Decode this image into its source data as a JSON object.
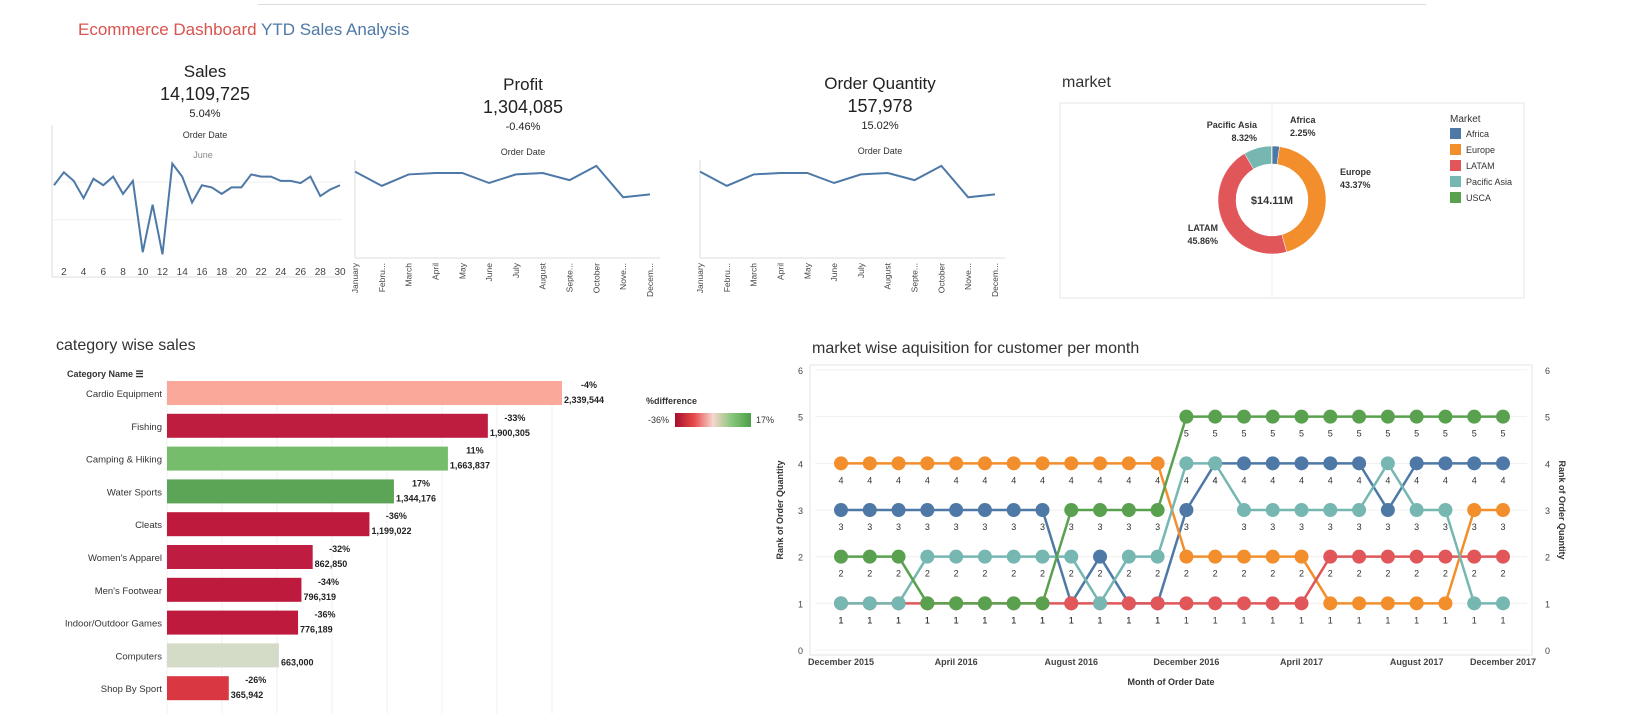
{
  "header": {
    "title_part1": "Ecommerce Dashboard",
    "title_part2": "YTD Sales Analysis"
  },
  "kpis": {
    "sales": {
      "label": "Sales",
      "value": "14,109,725",
      "change": "5.04%",
      "axis_title": "Order Date",
      "sub_label": "June"
    },
    "profit": {
      "label": "Profit",
      "value": "1,304,085",
      "change": "-0.46%",
      "axis_title": "Order Date"
    },
    "quantity": {
      "label": "Order Quantity",
      "value": "157,978",
      "change": "15.02%",
      "axis_title": "Order Date"
    }
  },
  "market": {
    "title": "market",
    "center_label": "$14.11M",
    "legend_title": "Market",
    "segments": [
      {
        "name": "Africa",
        "pct": 2.25,
        "label": "2.25%",
        "color": "#4e79a7"
      },
      {
        "name": "Europe",
        "pct": 43.37,
        "label": "43.37%",
        "color": "#f28e2b"
      },
      {
        "name": "LATAM",
        "pct": 45.86,
        "label": "45.86%",
        "color": "#e15759"
      },
      {
        "name": "Pacific Asia",
        "pct": 8.32,
        "label": "8.32%",
        "color": "#76b7b2"
      },
      {
        "name": "USCA",
        "pct": 0.2,
        "label": "",
        "color": "#59a14f"
      }
    ]
  },
  "category": {
    "title": "category wise sales",
    "header": "Category Name",
    "legend_title": "%difference",
    "legend_min": "-36%",
    "legend_max": "17%"
  },
  "acquisition": {
    "title": "market wise aquisition for customer per month",
    "y_title": "Rank of Order Quantity",
    "x_title": "Month of Order Date"
  },
  "chart_data": [
    {
      "type": "line",
      "title": "Sales",
      "xlabel": "Order Date",
      "x_label_top": "June",
      "x": [
        1,
        2,
        3,
        4,
        5,
        6,
        7,
        8,
        9,
        10,
        11,
        12,
        13,
        14,
        15,
        16,
        17,
        18,
        19,
        20,
        21,
        22,
        23,
        24,
        25,
        26,
        27,
        28,
        29,
        30
      ],
      "x_ticks": [
        "2",
        "4",
        "6",
        "8",
        "10",
        "12",
        "14",
        "16",
        "18",
        "20",
        "22",
        "24",
        "26",
        "28",
        "30"
      ],
      "values": [
        46,
        52,
        48,
        40,
        49,
        46,
        50,
        42,
        48,
        15,
        37,
        14,
        56,
        50,
        38,
        46,
        45,
        42,
        45,
        45,
        51,
        50,
        50,
        48,
        48,
        47,
        50,
        41,
        44,
        46
      ]
    },
    {
      "type": "line",
      "title": "Profit",
      "xlabel": "Order Date",
      "categories": [
        "January",
        "Febru...",
        "March",
        "April",
        "May",
        "June",
        "July",
        "August",
        "Septe...",
        "October",
        "Nove...",
        "Decem..."
      ],
      "values": [
        49,
        44,
        48,
        48.5,
        48.5,
        45,
        48,
        48.5,
        46,
        51,
        40,
        41
      ]
    },
    {
      "type": "line",
      "title": "Order Quantity",
      "xlabel": "Order Date",
      "categories": [
        "January",
        "Febru...",
        "March",
        "April",
        "May",
        "June",
        "July",
        "August",
        "Septe...",
        "October",
        "Nove...",
        "Decem..."
      ],
      "values": [
        49,
        44,
        48,
        48.5,
        48.5,
        45,
        48,
        48.5,
        46,
        51,
        40,
        41
      ]
    },
    {
      "type": "pie",
      "title": "market",
      "categories": [
        "Africa",
        "Europe",
        "LATAM",
        "Pacific Asia",
        "USCA"
      ],
      "values": [
        2.25,
        43.37,
        45.86,
        8.32,
        0.2
      ],
      "center": "$14.11M"
    },
    {
      "type": "bar",
      "title": "category wise sales",
      "categories": [
        "Cardio Equipment",
        "Fishing",
        "Camping & Hiking",
        "Water Sports",
        "Cleats",
        "Women's Apparel",
        "Men's Footwear",
        "Indoor/Outdoor Games",
        "Computers",
        "Shop By Sport"
      ],
      "values": [
        2339544,
        1900305,
        1663837,
        1344176,
        1199022,
        862850,
        796319,
        776189,
        663000,
        365942
      ],
      "value_labels": [
        "2,339,544",
        "1,900,305",
        "1,663,837",
        "1,344,176",
        "1,199,022",
        "862,850",
        "796,319",
        "776,189",
        "663,000",
        "365,942"
      ],
      "pct_diff": [
        -4,
        -33,
        11,
        17,
        -36,
        -32,
        -34,
        -36,
        null,
        -26
      ],
      "pct_labels": [
        "-4%",
        "-33%",
        "11%",
        "17%",
        "-36%",
        "-32%",
        "-34%",
        "-36%",
        "",
        "-26%"
      ],
      "colors": [
        "#f9a899",
        "#bf1d40",
        "#76bd6b",
        "#5da556",
        "#bd1a3e",
        "#be1c40",
        "#bd1a3e",
        "#bd1a3e",
        "#d4dbc7",
        "#d93742"
      ]
    },
    {
      "type": "line",
      "title": "market wise aquisition for customer per month",
      "xlabel": "Month of Order Date",
      "ylabel": "Rank of Order Quantity",
      "ylim": [
        0,
        6
      ],
      "y_ticks": [
        "0",
        "1",
        "2",
        "3",
        "4",
        "5",
        "6"
      ],
      "x_ticks": [
        "December 2015",
        "April 2016",
        "August 2016",
        "December 2016",
        "April 2017",
        "August 2017",
        "December 2017"
      ],
      "series": [
        {
          "name": "Africa",
          "color": "#4e79a7",
          "values": [
            3,
            3,
            3,
            3,
            3,
            3,
            3,
            3,
            1,
            2,
            1,
            1,
            3,
            4,
            4,
            4,
            4,
            4,
            4,
            3,
            4,
            4,
            4,
            4
          ]
        },
        {
          "name": "Europe",
          "color": "#f28e2b",
          "values": [
            4,
            4,
            4,
            4,
            4,
            4,
            4,
            4,
            4,
            4,
            4,
            4,
            2,
            2,
            2,
            2,
            2,
            1,
            1,
            1,
            1,
            1,
            3,
            3
          ]
        },
        {
          "name": "LATAM",
          "color": "#e15759",
          "values": [
            1,
            1,
            1,
            1,
            1,
            1,
            1,
            1,
            1,
            1,
            1,
            1,
            1,
            1,
            1,
            1,
            1,
            2,
            2,
            2,
            2,
            2,
            2,
            2
          ]
        },
        {
          "name": "Pacific Asia",
          "color": "#76b7b2",
          "values": [
            1,
            1,
            1,
            2,
            2,
            2,
            2,
            2,
            2,
            1,
            2,
            2,
            4,
            4,
            3,
            3,
            3,
            3,
            3,
            4,
            3,
            3,
            1,
            1
          ]
        },
        {
          "name": "USCA",
          "color": "#59a14f",
          "values": [
            2,
            2,
            2,
            1,
            1,
            1,
            1,
            1,
            3,
            3,
            3,
            3,
            5,
            5,
            5,
            5,
            5,
            5,
            5,
            5,
            5,
            5,
            5,
            5
          ]
        }
      ]
    }
  ]
}
